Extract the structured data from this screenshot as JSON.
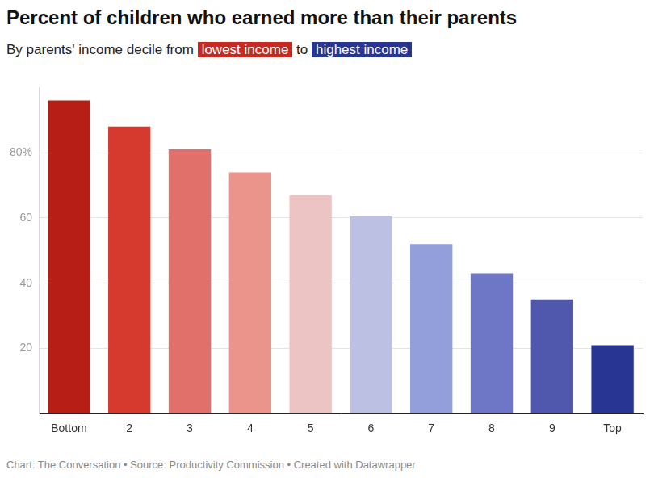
{
  "chart_data": {
    "type": "bar",
    "title": "Percent of children who earned more than their parents",
    "subtitle": [
      {
        "text": "By parents' income decile from "
      },
      {
        "text": "lowest income",
        "color": "#c62a22"
      },
      {
        "text": " to "
      },
      {
        "text": "highest income",
        "color": "#283593"
      }
    ],
    "source": "Chart: The Conversation • Source: Productivity Commission • Created with Datawrapper",
    "categories": [
      "Bottom",
      "2",
      "3",
      "4",
      "5",
      "6",
      "7",
      "8",
      "9",
      "Top"
    ],
    "values": [
      96,
      88,
      81,
      74,
      67,
      60.5,
      52,
      43,
      35,
      21
    ],
    "colors": [
      "#b71f16",
      "#d63a2e",
      "#e2706a",
      "#eb948c",
      "#edc4c4",
      "#bcc0e2",
      "#929fdb",
      "#6e77c5",
      "#5058ae",
      "#283593"
    ],
    "ylim": [
      0,
      100
    ],
    "yticks": [
      20,
      40,
      60,
      {
        "value": 80,
        "label": "80%"
      }
    ],
    "grid": true
  }
}
